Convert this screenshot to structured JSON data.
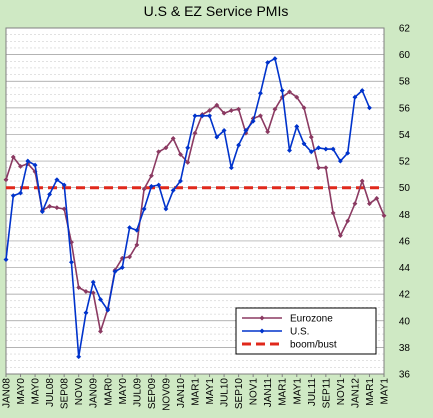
{
  "chart_data": {
    "type": "line",
    "title": "U.S & EZ Service PMIs",
    "ylim": [
      36,
      62
    ],
    "y_ticks": [
      36,
      38,
      40,
      42,
      44,
      46,
      48,
      50,
      52,
      54,
      56,
      58,
      60,
      62
    ],
    "y_axis_side": "right",
    "x_tick_labels": [
      "JAN08",
      "MAR08",
      "MAY08",
      "JUL08",
      "SEP08",
      "NOV08",
      "JAN09",
      "MAR09",
      "MAY09",
      "JUL09",
      "SEP09",
      "NOV09",
      "JAN10",
      "MAR10",
      "MAY10",
      "JUL10",
      "SEP10",
      "NOV10",
      "JAN11",
      "MAR11",
      "MAY11",
      "JUL11",
      "SEP11",
      "NOV11",
      "JAN12",
      "MAR12",
      "MAY12"
    ],
    "x_tick_display": [
      "JAN08",
      "MAY0",
      "MAY0",
      "JUL08",
      "SEP08",
      "NOV0",
      "JAN09",
      "MAR0",
      "MAY0",
      "JUL09",
      "SEP09",
      "NOV09",
      "JAN10",
      "MAR1",
      "MAY1",
      "JUL10",
      "SEP10",
      "NOV1",
      "JAN11",
      "MAR1",
      "MAY1",
      "JUL11",
      "SEP11",
      "NOV1",
      "JAN12",
      "MAR1",
      "MAY1"
    ],
    "grid": true,
    "legend_position": "bottom-right",
    "series": [
      {
        "name": "Eurozone",
        "color": "#8b3a62",
        "marker": "diamond",
        "values": [
          50.6,
          52.3,
          51.6,
          51.8,
          51.2,
          48.3,
          48.6,
          48.5,
          48.4,
          45.9,
          42.5,
          42.2,
          42.1,
          39.2,
          40.9,
          43.8,
          44.7,
          44.8,
          45.7,
          49.9,
          50.9,
          52.7,
          53.0,
          53.7,
          52.5,
          51.9,
          54.1,
          55.5,
          55.8,
          56.2,
          55.6,
          55.8,
          55.9,
          54.1,
          55.2,
          55.4,
          54.2,
          55.9,
          56.8,
          57.2,
          56.8,
          56.0,
          53.8,
          51.5,
          51.5,
          48.1,
          46.4,
          47.5,
          48.8,
          50.5,
          48.8,
          49.2,
          47.9
        ]
      },
      {
        "name": "U.S.",
        "color": "#0033cc",
        "marker": "diamond",
        "values": [
          44.6,
          49.4,
          49.6,
          52.0,
          51.7,
          48.2,
          49.5,
          50.6,
          50.2,
          44.4,
          37.3,
          40.6,
          42.9,
          41.6,
          40.8,
          43.7,
          44.0,
          47.0,
          46.8,
          48.4,
          50.1,
          50.2,
          48.4,
          49.8,
          50.5,
          53.0,
          55.4,
          55.4,
          55.4,
          53.8,
          54.3,
          51.5,
          53.2,
          54.3,
          55.0,
          57.1,
          59.4,
          59.7,
          57.3,
          52.8,
          54.6,
          53.3,
          52.7,
          53.0,
          52.9,
          52.9,
          52.0,
          52.6,
          56.8,
          57.3,
          56.0
        ]
      },
      {
        "name": "boom/bust",
        "color": "#e0281b",
        "style": "dashed",
        "constant": 50
      }
    ]
  }
}
